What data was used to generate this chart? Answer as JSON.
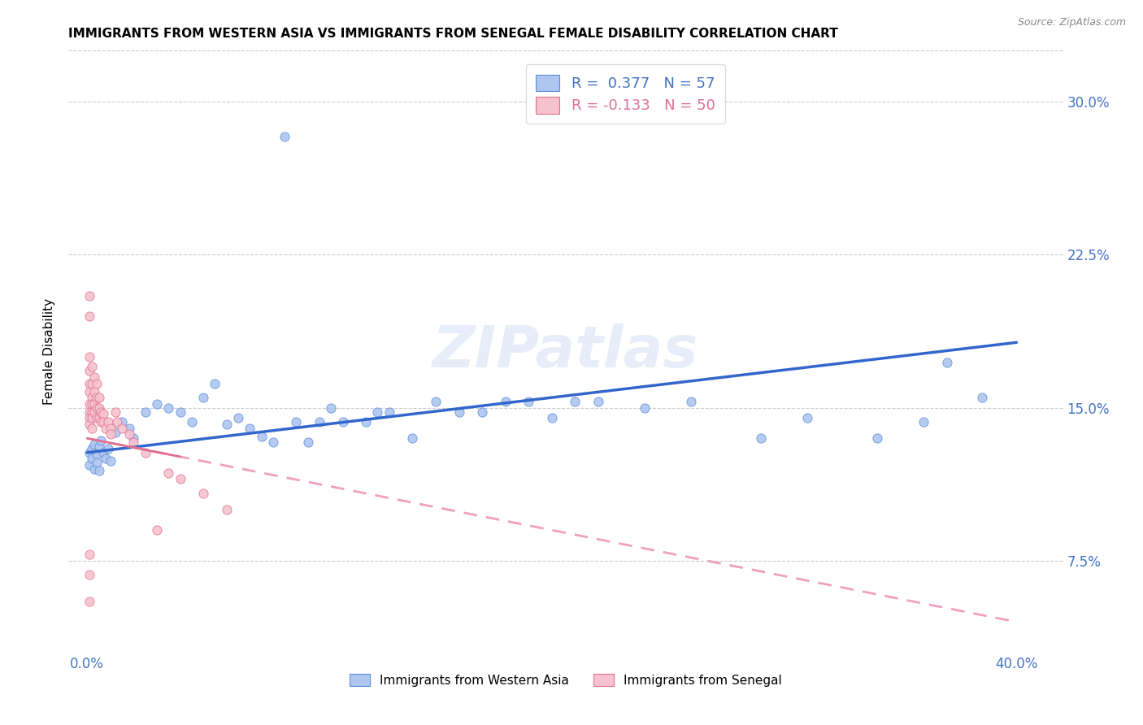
{
  "title": "IMMIGRANTS FROM WESTERN ASIA VS IMMIGRANTS FROM SENEGAL FEMALE DISABILITY CORRELATION CHART",
  "source": "Source: ZipAtlas.com",
  "ylabel": "Female Disability",
  "ytick_vals": [
    0.075,
    0.15,
    0.225,
    0.3
  ],
  "ytick_labels": [
    "7.5%",
    "15.0%",
    "22.5%",
    "30.0%"
  ],
  "xtick_vals": [
    0.0,
    0.05,
    0.1,
    0.15,
    0.2,
    0.25,
    0.3,
    0.35,
    0.4
  ],
  "xtick_labels": [
    "0.0%",
    "",
    "",
    "",
    "",
    "",
    "",
    "",
    "40.0%"
  ],
  "xlim": [
    -0.008,
    0.42
  ],
  "ylim": [
    0.03,
    0.325
  ],
  "legend1_label": "R =  0.377   N = 57",
  "legend2_label": "R = -0.133   N = 50",
  "scatter1_color": "#aec6f0",
  "scatter1_edge": "#5b8dd9",
  "scatter2_color": "#f5c2ce",
  "scatter2_edge": "#e07090",
  "line1_color": "#3366cc",
  "line2_color": "#f0a0b8",
  "watermark": "ZIPatlas",
  "bottom_label1": "Immigrants from Western Asia",
  "bottom_label2": "Immigrants from Senegal",
  "western_asia_x": [
    0.001,
    0.001,
    0.002,
    0.002,
    0.003,
    0.003,
    0.004,
    0.004,
    0.005,
    0.005,
    0.006,
    0.007,
    0.008,
    0.009,
    0.01,
    0.012,
    0.015,
    0.018,
    0.02,
    0.025,
    0.03,
    0.035,
    0.04,
    0.045,
    0.05,
    0.055,
    0.06,
    0.065,
    0.07,
    0.075,
    0.08,
    0.09,
    0.095,
    0.1,
    0.105,
    0.11,
    0.12,
    0.125,
    0.13,
    0.14,
    0.15,
    0.16,
    0.17,
    0.18,
    0.19,
    0.2,
    0.21,
    0.22,
    0.24,
    0.26,
    0.29,
    0.31,
    0.34,
    0.36,
    0.37,
    0.385,
    0.085
  ],
  "western_asia_y": [
    0.128,
    0.122,
    0.13,
    0.125,
    0.132,
    0.12,
    0.127,
    0.123,
    0.131,
    0.119,
    0.134,
    0.128,
    0.125,
    0.13,
    0.124,
    0.138,
    0.143,
    0.14,
    0.135,
    0.148,
    0.152,
    0.15,
    0.148,
    0.143,
    0.155,
    0.162,
    0.142,
    0.145,
    0.14,
    0.136,
    0.133,
    0.143,
    0.133,
    0.143,
    0.15,
    0.143,
    0.143,
    0.148,
    0.148,
    0.135,
    0.153,
    0.148,
    0.148,
    0.153,
    0.153,
    0.145,
    0.153,
    0.153,
    0.15,
    0.153,
    0.135,
    0.145,
    0.135,
    0.143,
    0.172,
    0.155,
    0.283
  ],
  "senegal_x": [
    0.001,
    0.001,
    0.001,
    0.001,
    0.001,
    0.001,
    0.001,
    0.001,
    0.001,
    0.001,
    0.002,
    0.002,
    0.002,
    0.002,
    0.002,
    0.002,
    0.002,
    0.003,
    0.003,
    0.003,
    0.003,
    0.004,
    0.004,
    0.004,
    0.004,
    0.005,
    0.005,
    0.005,
    0.006,
    0.006,
    0.007,
    0.007,
    0.008,
    0.009,
    0.01,
    0.01,
    0.012,
    0.013,
    0.015,
    0.018,
    0.02,
    0.025,
    0.03,
    0.035,
    0.04,
    0.05,
    0.06,
    0.001,
    0.001,
    0.001
  ],
  "senegal_y": [
    0.205,
    0.195,
    0.175,
    0.168,
    0.162,
    0.158,
    0.152,
    0.148,
    0.145,
    0.142,
    0.17,
    0.162,
    0.155,
    0.152,
    0.148,
    0.145,
    0.14,
    0.165,
    0.158,
    0.152,
    0.148,
    0.162,
    0.155,
    0.15,
    0.145,
    0.155,
    0.15,
    0.145,
    0.148,
    0.143,
    0.147,
    0.143,
    0.14,
    0.143,
    0.14,
    0.137,
    0.148,
    0.143,
    0.14,
    0.137,
    0.133,
    0.128,
    0.09,
    0.118,
    0.115,
    0.108,
    0.1,
    0.078,
    0.068,
    0.055
  ],
  "line1_x_start": 0.0,
  "line1_x_end": 0.4,
  "line1_y_start": 0.128,
  "line1_y_end": 0.182,
  "line2_x_start": 0.0,
  "line2_x_end": 0.4,
  "line2_y_start": 0.135,
  "line2_y_end": 0.045
}
